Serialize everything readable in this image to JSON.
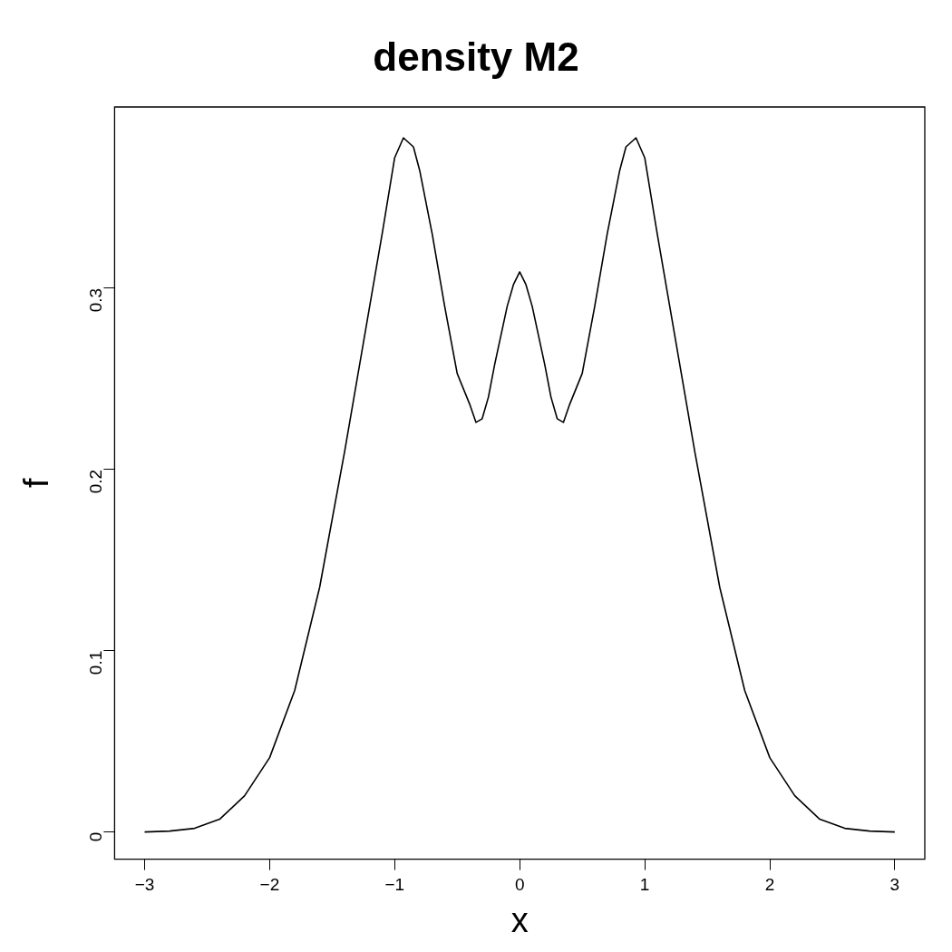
{
  "chart_data": {
    "type": "line",
    "title": "density M2",
    "xlabel": "x",
    "ylabel": "f",
    "x": [
      -3,
      -2.8,
      -2.6,
      -2.4,
      -2.2,
      -2,
      -1.8,
      -1.6,
      -1.4,
      -1.3,
      -1.2,
      -1.1,
      -1,
      -0.93,
      -0.85,
      -0.8,
      -0.7,
      -0.6,
      -0.5,
      -0.4,
      -0.35,
      -0.3,
      -0.25,
      -0.2,
      -0.1,
      -0.05,
      0,
      0.05,
      0.1,
      0.2,
      0.25,
      0.3,
      0.35,
      0.4,
      0.5,
      0.6,
      0.7,
      0.8,
      0.85,
      0.93,
      1,
      1.1,
      1.2,
      1.3,
      1.4,
      1.6,
      1.8,
      2,
      2.2,
      2.4,
      2.6,
      2.8,
      3
    ],
    "series": [
      {
        "color": "#000000",
        "values": [
          0,
          0.0005,
          0.002,
          0.007,
          0.02,
          0.041,
          0.078,
          0.135,
          0.21,
          0.25,
          0.29,
          0.33,
          0.372,
          0.383,
          0.378,
          0.365,
          0.33,
          0.29,
          0.253,
          0.236,
          0.226,
          0.228,
          0.24,
          0.258,
          0.29,
          0.302,
          0.309,
          0.302,
          0.29,
          0.258,
          0.24,
          0.228,
          0.226,
          0.236,
          0.253,
          0.29,
          0.33,
          0.365,
          0.378,
          0.383,
          0.372,
          0.33,
          0.29,
          0.25,
          0.21,
          0.135,
          0.078,
          0.041,
          0.02,
          0.007,
          0.002,
          0.0005,
          0
        ]
      }
    ],
    "xlim": [
      -3.24,
      3.24
    ],
    "ylim": [
      -0.015,
      0.4
    ],
    "xticks": [
      -3,
      -2,
      -1,
      0,
      1,
      2,
      3
    ],
    "yticks": [
      0,
      0.1,
      0.2,
      0.3
    ],
    "grid": false,
    "legend": false,
    "marker": "none",
    "line_style": "solid"
  }
}
